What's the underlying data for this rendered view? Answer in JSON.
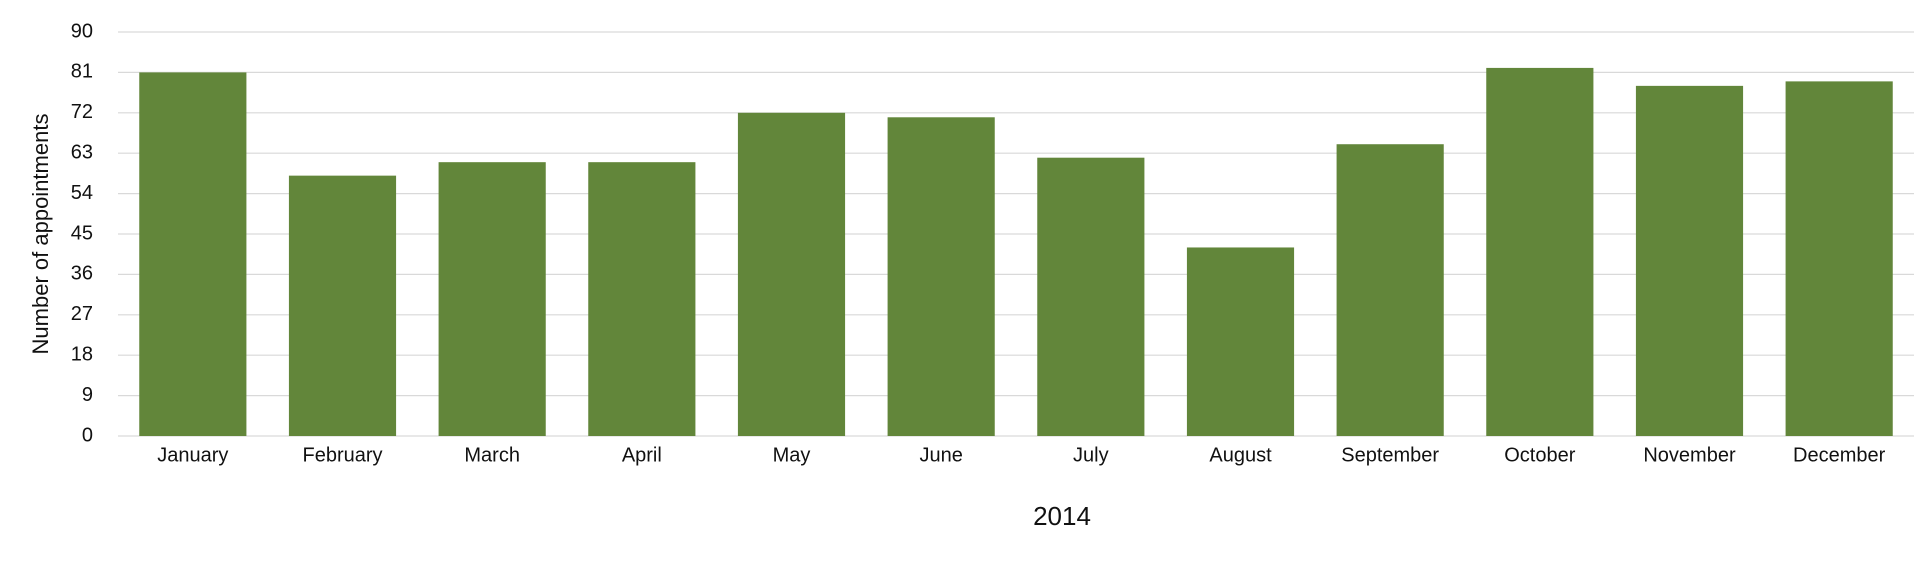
{
  "chart_data": {
    "type": "bar",
    "x_label": "2014",
    "y_label": "Number of appointments",
    "categories": [
      "January",
      "February",
      "March",
      "April",
      "May",
      "June",
      "July",
      "August",
      "September",
      "October",
      "November",
      "December"
    ],
    "values": [
      81,
      58,
      61,
      61,
      72,
      71,
      62,
      42,
      65,
      82,
      78,
      79
    ],
    "color": "#62863a",
    "ylim": [
      0,
      90
    ],
    "yticks": [
      0,
      9,
      18,
      27,
      36,
      45,
      54,
      63,
      72,
      81,
      90
    ],
    "grid": true
  }
}
